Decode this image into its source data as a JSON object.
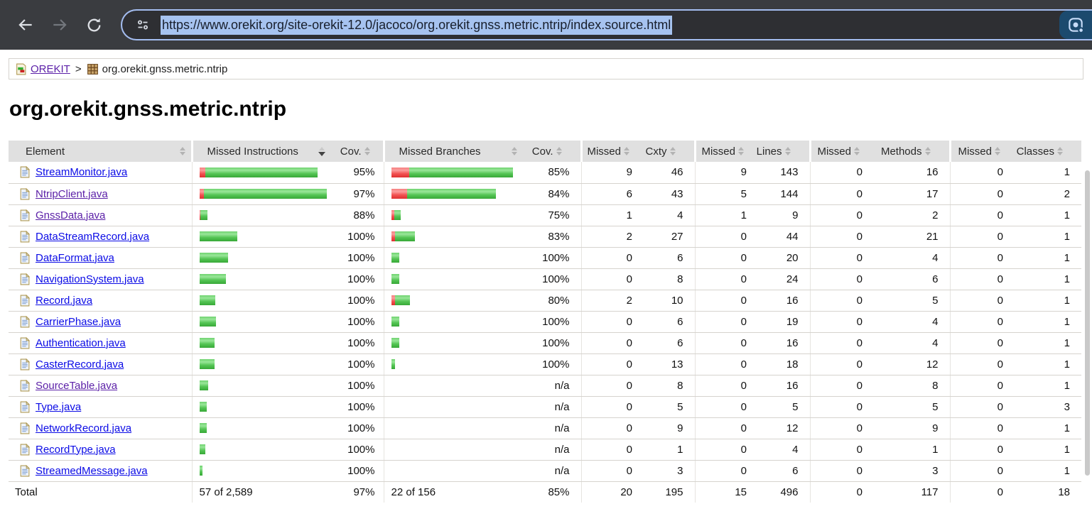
{
  "browser": {
    "url": "https://www.orekit.org/site-orekit-12.0/jacoco/org.orekit.gnss.metric.ntrip/index.source.html"
  },
  "breadcrumb": {
    "root": "OREKIT",
    "separator": ">",
    "current": "org.orekit.gnss.metric.ntrip"
  },
  "page": {
    "title": "org.orekit.gnss.metric.ntrip"
  },
  "table": {
    "headers": [
      {
        "label": "Element",
        "sort": "none"
      },
      {
        "label": "Missed Instructions",
        "sort": "desc"
      },
      {
        "label": "Cov.",
        "sort": "none"
      },
      {
        "label": "Missed Branches",
        "sort": "none"
      },
      {
        "label": "Cov.",
        "sort": "none"
      },
      {
        "label": "Missed",
        "sort": "none"
      },
      {
        "label": "Cxty",
        "sort": "none"
      },
      {
        "label": "Missed",
        "sort": "none"
      },
      {
        "label": "Lines",
        "sort": "none"
      },
      {
        "label": "Missed",
        "sort": "none"
      },
      {
        "label": "Methods",
        "sort": "none"
      },
      {
        "label": "Missed",
        "sort": "none"
      },
      {
        "label": "Classes",
        "sort": "none"
      }
    ],
    "rows": [
      {
        "element": "StreamMonitor.java",
        "visited": false,
        "instr_bar": {
          "missed_w": 8,
          "covered_w": 158
        },
        "instr_cov": "95%",
        "branch_bar": {
          "missed_w": 25,
          "covered_w": 146
        },
        "branch_cov": "85%",
        "cells": [
          "9",
          "46",
          "9",
          "143",
          "0",
          "16",
          "0",
          "1"
        ]
      },
      {
        "element": "NtripClient.java",
        "visited": true,
        "instr_bar": {
          "missed_w": 6,
          "covered_w": 173
        },
        "instr_cov": "97%",
        "branch_bar": {
          "missed_w": 22,
          "covered_w": 125
        },
        "branch_cov": "84%",
        "cells": [
          "6",
          "43",
          "5",
          "144",
          "0",
          "17",
          "0",
          "2"
        ]
      },
      {
        "element": "GnssData.java",
        "visited": true,
        "instr_bar": {
          "missed_w": 1,
          "covered_w": 10
        },
        "instr_cov": "88%",
        "branch_bar": {
          "missed_w": 4,
          "covered_w": 9
        },
        "branch_cov": "75%",
        "cells": [
          "1",
          "4",
          "1",
          "9",
          "0",
          "2",
          "0",
          "1"
        ]
      },
      {
        "element": "DataStreamRecord.java",
        "visited": false,
        "instr_bar": {
          "missed_w": 0,
          "covered_w": 53
        },
        "instr_cov": "100%",
        "branch_bar": {
          "missed_w": 5,
          "covered_w": 28
        },
        "branch_cov": "83%",
        "cells": [
          "2",
          "27",
          "0",
          "44",
          "0",
          "21",
          "0",
          "1"
        ]
      },
      {
        "element": "DataFormat.java",
        "visited": false,
        "instr_bar": {
          "missed_w": 0,
          "covered_w": 40
        },
        "instr_cov": "100%",
        "branch_bar": {
          "missed_w": 0,
          "covered_w": 11
        },
        "branch_cov": "100%",
        "cells": [
          "0",
          "6",
          "0",
          "20",
          "0",
          "4",
          "0",
          "1"
        ]
      },
      {
        "element": "NavigationSystem.java",
        "visited": false,
        "instr_bar": {
          "missed_w": 0,
          "covered_w": 37
        },
        "instr_cov": "100%",
        "branch_bar": {
          "missed_w": 0,
          "covered_w": 11
        },
        "branch_cov": "100%",
        "cells": [
          "0",
          "8",
          "0",
          "24",
          "0",
          "6",
          "0",
          "1"
        ]
      },
      {
        "element": "Record.java",
        "visited": false,
        "instr_bar": {
          "missed_w": 0,
          "covered_w": 22
        },
        "instr_cov": "100%",
        "branch_bar": {
          "missed_w": 5,
          "covered_w": 21
        },
        "branch_cov": "80%",
        "cells": [
          "2",
          "10",
          "0",
          "16",
          "0",
          "5",
          "0",
          "1"
        ]
      },
      {
        "element": "CarrierPhase.java",
        "visited": false,
        "instr_bar": {
          "missed_w": 0,
          "covered_w": 23
        },
        "instr_cov": "100%",
        "branch_bar": {
          "missed_w": 0,
          "covered_w": 11
        },
        "branch_cov": "100%",
        "cells": [
          "0",
          "6",
          "0",
          "19",
          "0",
          "4",
          "0",
          "1"
        ]
      },
      {
        "element": "Authentication.java",
        "visited": false,
        "instr_bar": {
          "missed_w": 0,
          "covered_w": 21
        },
        "instr_cov": "100%",
        "branch_bar": {
          "missed_w": 0,
          "covered_w": 11
        },
        "branch_cov": "100%",
        "cells": [
          "0",
          "6",
          "0",
          "16",
          "0",
          "4",
          "0",
          "1"
        ]
      },
      {
        "element": "CasterRecord.java",
        "visited": false,
        "instr_bar": {
          "missed_w": 0,
          "covered_w": 21
        },
        "instr_cov": "100%",
        "branch_bar": {
          "missed_w": 0,
          "covered_w": 5
        },
        "branch_cov": "100%",
        "cells": [
          "0",
          "13",
          "0",
          "18",
          "0",
          "12",
          "0",
          "1"
        ]
      },
      {
        "element": "SourceTable.java",
        "visited": true,
        "instr_bar": {
          "missed_w": 0,
          "covered_w": 12
        },
        "instr_cov": "100%",
        "branch_bar": null,
        "branch_cov": "n/a",
        "cells": [
          "0",
          "8",
          "0",
          "16",
          "0",
          "8",
          "0",
          "1"
        ]
      },
      {
        "element": "Type.java",
        "visited": false,
        "instr_bar": {
          "missed_w": 0,
          "covered_w": 10
        },
        "instr_cov": "100%",
        "branch_bar": null,
        "branch_cov": "n/a",
        "cells": [
          "0",
          "5",
          "0",
          "5",
          "0",
          "5",
          "0",
          "3"
        ]
      },
      {
        "element": "NetworkRecord.java",
        "visited": false,
        "instr_bar": {
          "missed_w": 0,
          "covered_w": 10
        },
        "instr_cov": "100%",
        "branch_bar": null,
        "branch_cov": "n/a",
        "cells": [
          "0",
          "9",
          "0",
          "12",
          "0",
          "9",
          "0",
          "1"
        ]
      },
      {
        "element": "RecordType.java",
        "visited": false,
        "instr_bar": {
          "missed_w": 0,
          "covered_w": 8
        },
        "instr_cov": "100%",
        "branch_bar": null,
        "branch_cov": "n/a",
        "cells": [
          "0",
          "1",
          "0",
          "4",
          "0",
          "1",
          "0",
          "1"
        ]
      },
      {
        "element": "StreamedMessage.java",
        "visited": false,
        "instr_bar": {
          "missed_w": 0,
          "covered_w": 4
        },
        "instr_cov": "100%",
        "branch_bar": null,
        "branch_cov": "n/a",
        "cells": [
          "0",
          "3",
          "0",
          "6",
          "0",
          "3",
          "0",
          "1"
        ]
      }
    ],
    "total": {
      "element": "Total",
      "instr_text": "57 of 2,589",
      "instr_cov": "97%",
      "branch_text": "22 of 156",
      "branch_cov": "85%",
      "cells": [
        "20",
        "195",
        "15",
        "496",
        "0",
        "117",
        "0",
        "18"
      ]
    }
  },
  "colors": {
    "toolbar_bg": "#3a3c40",
    "omnibox_bg": "#2e2f33",
    "focus_ring": "#a4bdf0",
    "selection_bg": "#a6c3f0",
    "selection_text": "#181f2c",
    "lens_bg": "#1c4a6e",
    "lens_glyph": "#c7dcf8",
    "link_blue": "#0b0be6",
    "link_purple": "#5c21a8",
    "header_bg": "#e0e0e0",
    "bar_green": "#54c554",
    "bar_red": "#f25252"
  }
}
